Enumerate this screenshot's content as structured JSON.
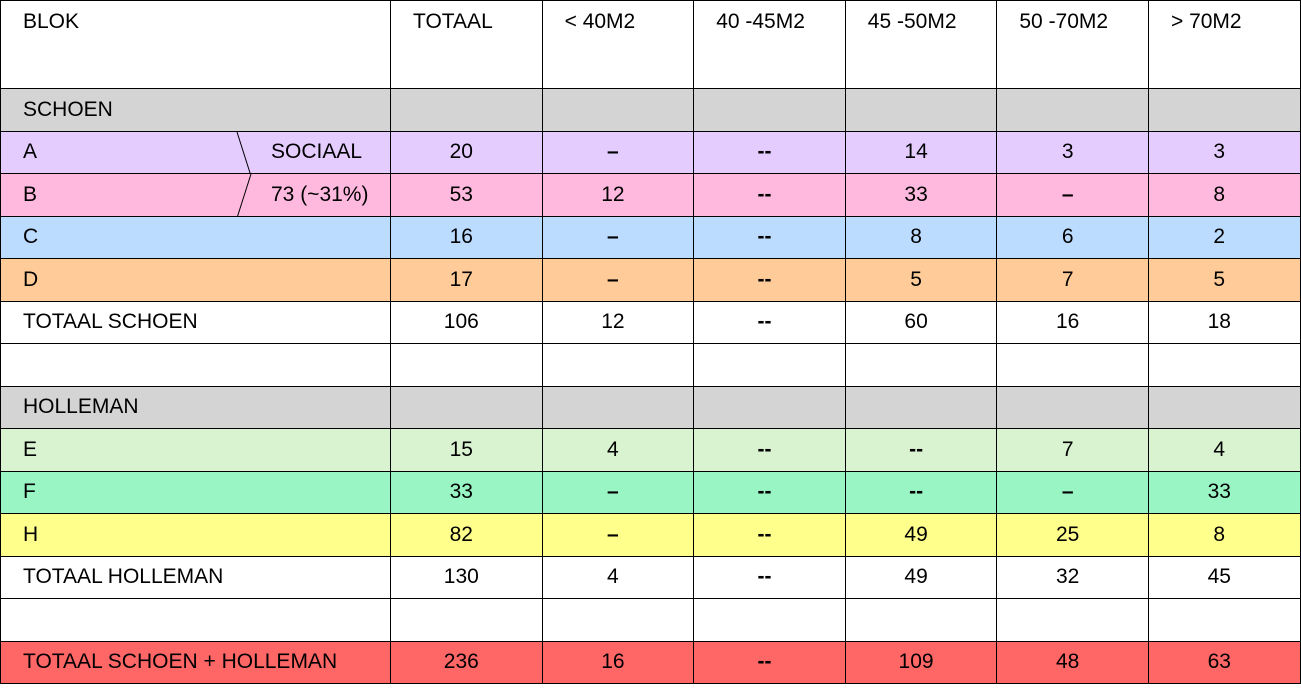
{
  "headers": [
    "BLOK",
    "TOTAAL",
    "< 40M2",
    "40 -45M2",
    "45 -50M2",
    "50 -70M2",
    "> 70M2"
  ],
  "colors": {
    "section": "#d4d4d4",
    "A": "#e5ccff",
    "B": "#ffb9df",
    "C": "#bcdcff",
    "D": "#ffcc99",
    "E": "#d9f2d0",
    "F": "#99f5c4",
    "H": "#ffff8c",
    "grand_total": "#ff6666",
    "plain": "#ffffff"
  },
  "sociaal": {
    "label": "SOCIAAL",
    "value": "73 (~31%)"
  },
  "rows": [
    {
      "kind": "section",
      "label": "SCHOEN",
      "color": "section",
      "values": [
        "",
        "",
        "",
        "",
        "",
        ""
      ]
    },
    {
      "kind": "split",
      "label": "A",
      "tag": "SOCIAAL",
      "color": "A",
      "values": [
        "20",
        "–",
        "--",
        "14",
        "3",
        "3"
      ]
    },
    {
      "kind": "split",
      "label": "B",
      "tag": "73 (~31%)",
      "color": "B",
      "values": [
        "53",
        "12",
        "--",
        "33",
        "–",
        "8"
      ]
    },
    {
      "kind": "data",
      "label": "C",
      "color": "C",
      "values": [
        "16",
        "–",
        "--",
        "8",
        "6",
        "2"
      ]
    },
    {
      "kind": "data",
      "label": "D",
      "color": "D",
      "values": [
        "17",
        "–",
        "--",
        "5",
        "7",
        "5"
      ]
    },
    {
      "kind": "data",
      "label": "TOTAAL SCHOEN",
      "color": "plain",
      "values": [
        "106",
        "12",
        "--",
        "60",
        "16",
        "18"
      ]
    },
    {
      "kind": "blank",
      "label": "",
      "color": "plain",
      "values": [
        "",
        "",
        "",
        "",
        "",
        ""
      ]
    },
    {
      "kind": "section",
      "label": "HOLLEMAN",
      "color": "section",
      "values": [
        "",
        "",
        "",
        "",
        "",
        ""
      ]
    },
    {
      "kind": "data",
      "label": "E",
      "color": "E",
      "values": [
        "15",
        "4",
        "--",
        "--",
        "7",
        "4"
      ]
    },
    {
      "kind": "data",
      "label": "F",
      "color": "F",
      "values": [
        "33",
        "–",
        "--",
        "--",
        "–",
        "33"
      ]
    },
    {
      "kind": "data",
      "label": "H",
      "color": "H",
      "values": [
        "82",
        "–",
        "--",
        "49",
        "25",
        "8"
      ]
    },
    {
      "kind": "data",
      "label": "TOTAAL HOLLEMAN",
      "color": "plain",
      "values": [
        "130",
        "4",
        "--",
        "49",
        "32",
        "45"
      ]
    },
    {
      "kind": "blank",
      "label": "",
      "color": "plain",
      "values": [
        "",
        "",
        "",
        "",
        "",
        ""
      ]
    },
    {
      "kind": "data",
      "label": "TOTAAL SCHOEN + HOLLEMAN",
      "color": "grand_total",
      "values": [
        "236",
        "16",
        "--",
        "109",
        "48",
        "63"
      ]
    }
  ]
}
